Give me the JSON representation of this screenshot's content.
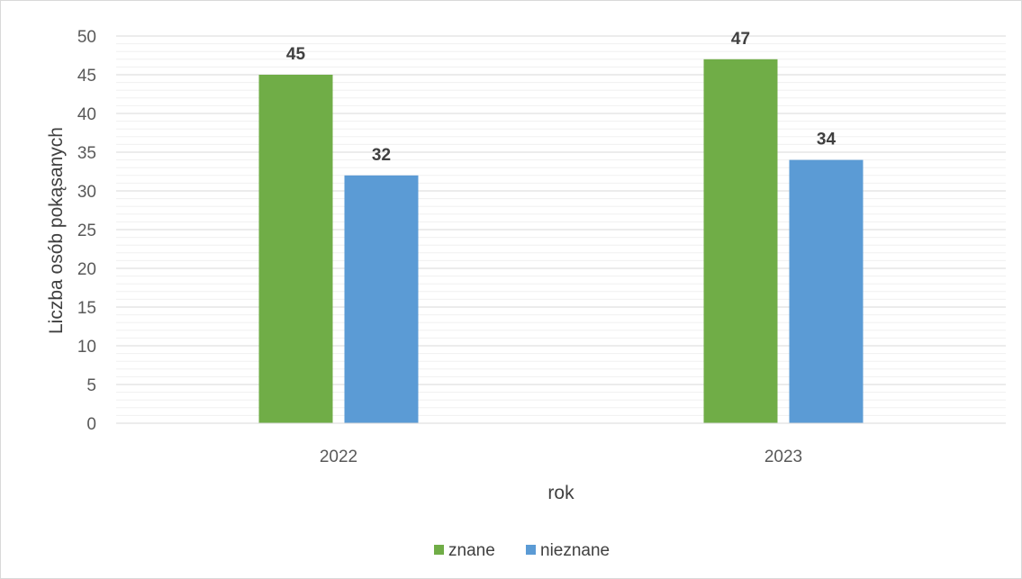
{
  "chart_data": {
    "type": "bar",
    "categories": [
      "2022",
      "2023"
    ],
    "series": [
      {
        "name": "znane",
        "values": [
          45,
          47
        ],
        "color": "#70AD47"
      },
      {
        "name": "nieznane",
        "values": [
          32,
          34
        ],
        "color": "#5B9BD5"
      }
    ],
    "xlabel": "rok",
    "ylabel": "Liczba osób pokąsanych",
    "ylim": [
      0,
      50
    ],
    "yticks": [
      0,
      5,
      10,
      15,
      20,
      25,
      30,
      35,
      40,
      45,
      50
    ],
    "grid": true,
    "minor_grid": true,
    "data_labels": true,
    "legend_position": "bottom"
  }
}
